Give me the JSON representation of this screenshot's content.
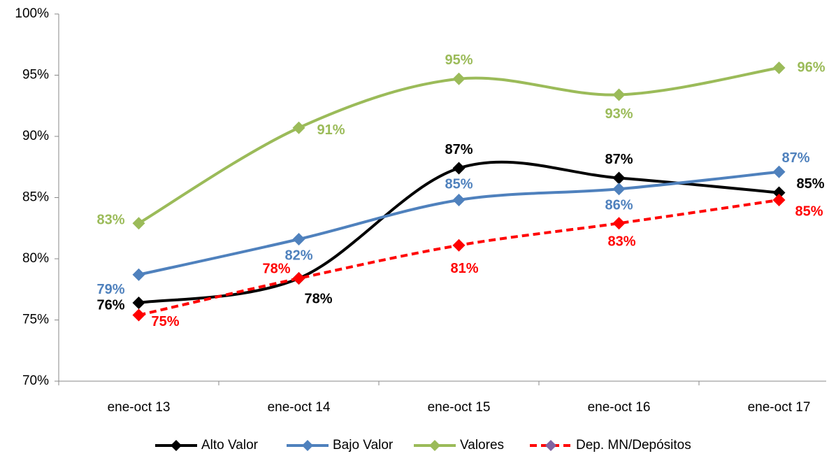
{
  "chart_data": {
    "type": "line",
    "smooth": true,
    "categories": [
      "ene-oct 13",
      "ene-oct 14",
      "ene-oct 15",
      "ene-oct 16",
      "ene-oct 17"
    ],
    "series": [
      {
        "name": "Alto Valor",
        "color": "#000000",
        "dashed": false,
        "values": [
          76.4,
          78.4,
          87.4,
          86.6,
          85.4
        ],
        "value_labels": [
          "76%",
          "78%",
          "87%",
          "87%",
          "85%"
        ]
      },
      {
        "name": "Bajo Valor",
        "color": "#4f81bd",
        "dashed": false,
        "values": [
          78.7,
          81.6,
          84.8,
          85.7,
          87.1
        ],
        "value_labels": [
          "79%",
          "82%",
          "85%",
          "86%",
          "87%"
        ]
      },
      {
        "name": "Valores",
        "color": "#9bbb59",
        "dashed": false,
        "values": [
          82.9,
          90.7,
          94.7,
          93.4,
          95.6
        ],
        "value_labels": [
          "83%",
          "91%",
          "95%",
          "93%",
          "96%"
        ]
      },
      {
        "name": "Dep. MN/Depósitos",
        "color": "#ff0000",
        "dashed": true,
        "values": [
          75.4,
          78.4,
          81.1,
          82.9,
          84.8
        ],
        "value_labels": [
          "75%",
          "78%",
          "81%",
          "83%",
          "85%"
        ]
      }
    ],
    "ylim": [
      70,
      100
    ],
    "yticks": [
      {
        "value": 70,
        "label": "70%"
      },
      {
        "value": 75,
        "label": "75%"
      },
      {
        "value": 80,
        "label": "80%"
      },
      {
        "value": 85,
        "label": "85%"
      },
      {
        "value": 90,
        "label": "90%"
      },
      {
        "value": 95,
        "label": "95%"
      },
      {
        "value": 100,
        "label": "100%"
      }
    ],
    "grid": false,
    "legend": "bottom"
  }
}
